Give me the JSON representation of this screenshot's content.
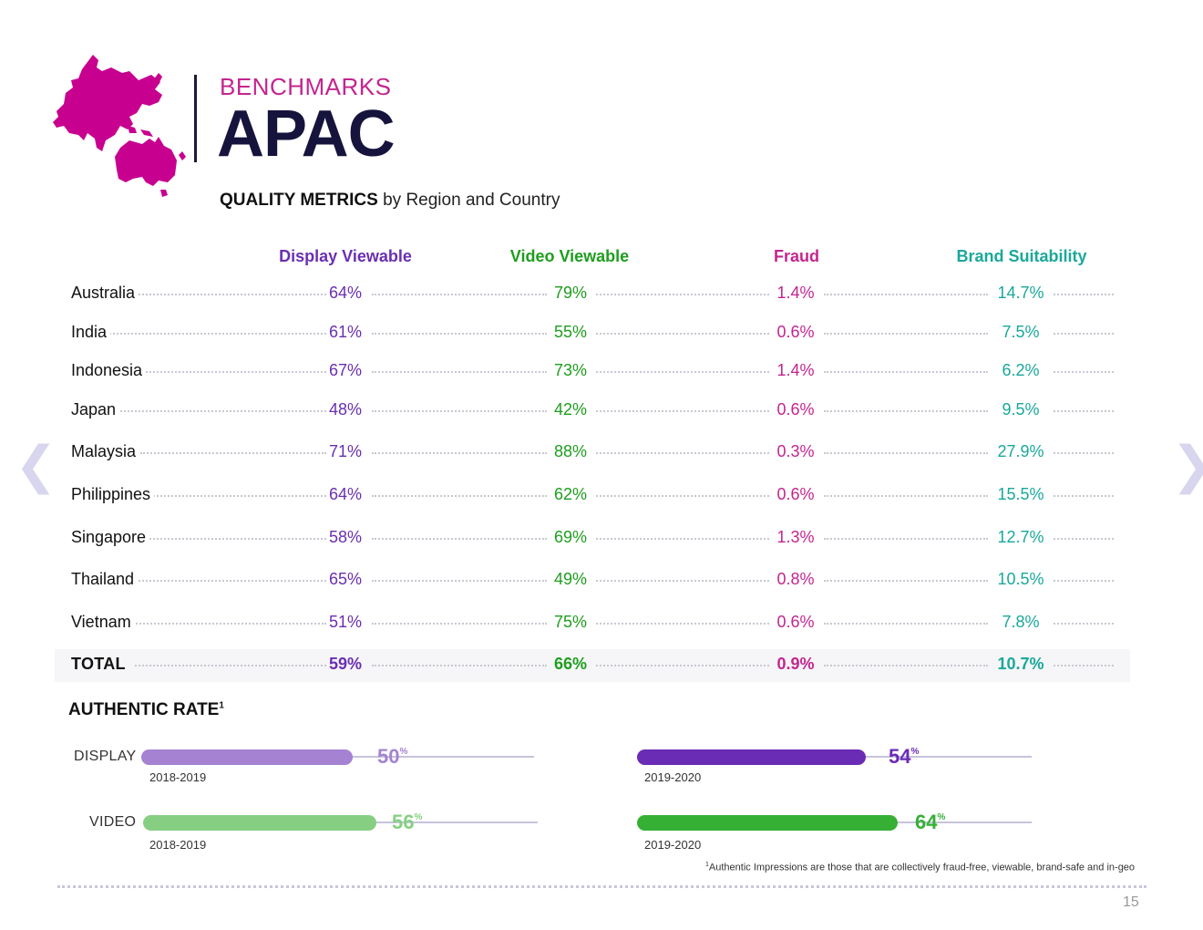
{
  "header": {
    "kicker": "BENCHMARKS",
    "title": "APAC",
    "subtitle_bold": "QUALITY METRICS",
    "subtitle_rest": " by Region and Country"
  },
  "colors": {
    "display": "#6a2fb0",
    "video": "#1e9e1e",
    "fraud": "#c4258f",
    "brand": "#1aa89a",
    "map": "#c8008f",
    "title": "#16143d"
  },
  "table": {
    "columns": [
      "Display Viewable",
      "Video Viewable",
      "Fraud",
      "Brand Suitability"
    ],
    "rows": [
      {
        "country": "Australia",
        "display": "64%",
        "video": "79%",
        "fraud": "1.4%",
        "brand": "14.7%"
      },
      {
        "country": "India",
        "display": "61%",
        "video": "55%",
        "fraud": "0.6%",
        "brand": "7.5%"
      },
      {
        "country": "Indonesia",
        "display": "67%",
        "video": "73%",
        "fraud": "1.4%",
        "brand": "6.2%"
      },
      {
        "country": "Japan",
        "display": "48%",
        "video": "42%",
        "fraud": "0.6%",
        "brand": "9.5%"
      },
      {
        "country": "Malaysia",
        "display": "71%",
        "video": "88%",
        "fraud": "0.3%",
        "brand": "27.9%"
      },
      {
        "country": "Philippines",
        "display": "64%",
        "video": "62%",
        "fraud": "0.6%",
        "brand": "15.5%"
      },
      {
        "country": "Singapore",
        "display": "58%",
        "video": "69%",
        "fraud": "1.3%",
        "brand": "12.7%"
      },
      {
        "country": "Thailand",
        "display": "65%",
        "video": "49%",
        "fraud": "0.8%",
        "brand": "10.5%"
      },
      {
        "country": "Vietnam",
        "display": "51%",
        "video": "75%",
        "fraud": "0.6%",
        "brand": "7.8%"
      }
    ],
    "total": {
      "country": "TOTAL",
      "display": "59%",
      "video": "66%",
      "fraud": "0.9%",
      "brand": "10.7%"
    }
  },
  "authentic": {
    "title": "AUTHENTIC RATE",
    "title_sup": "1",
    "display_label": "DISPLAY",
    "video_label": "VIDEO",
    "bars": [
      {
        "metric": "DISPLAY",
        "period": "2018-2019",
        "value": 50,
        "value_label": "50",
        "color": "#a582d2"
      },
      {
        "metric": "DISPLAY",
        "period": "2019-2020",
        "value": 54,
        "value_label": "54",
        "color": "#6a2bb5"
      },
      {
        "metric": "VIDEO",
        "period": "2018-2019",
        "value": 56,
        "value_label": "56",
        "color": "#86cf82"
      },
      {
        "metric": "VIDEO",
        "period": "2019-2020",
        "value": 64,
        "value_label": "64",
        "color": "#35b035"
      }
    ],
    "pct_symbol": "%"
  },
  "footnote": {
    "sup": "1",
    "text": "Authentic Impressions are those that are collectively fraud-free, viewable, brand-safe and in-geo"
  },
  "page_number": "15",
  "nav": {
    "prev": "❮",
    "next": "❯"
  }
}
